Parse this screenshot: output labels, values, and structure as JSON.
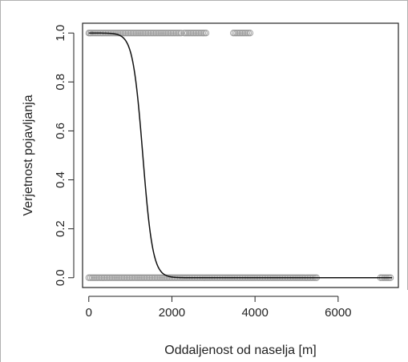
{
  "chart_data": {
    "type": "scatter",
    "title": "",
    "xlabel": "Oddaljenost od naselja [m]",
    "ylabel": "Verjetnost pojavljanja",
    "xlim": [
      -150,
      7450
    ],
    "ylim": [
      -0.04,
      1.04
    ],
    "x_ticks": [
      0,
      2000,
      4000,
      6000
    ],
    "y_ticks": [
      0.0,
      0.2,
      0.4,
      0.6,
      0.8,
      1.0
    ],
    "x_tick_labels": [
      "0",
      "2000",
      "4000",
      "6000"
    ],
    "y_tick_labels": [
      "0.0",
      "0.2",
      "0.4",
      "0.6",
      "0.8",
      "1.0"
    ],
    "grid": false,
    "legend": "none",
    "series": [
      {
        "type": "scatter",
        "points_y1": {
          "x": [
            0,
            30,
            60,
            100,
            140,
            180,
            220,
            260,
            300,
            340,
            380,
            420,
            460,
            500,
            540,
            580,
            620,
            660,
            700,
            740,
            780,
            820,
            860,
            900,
            940,
            980,
            1020,
            1060,
            1100,
            1140,
            1180,
            1220,
            1260,
            1300,
            1340,
            1380,
            1420,
            1460,
            1500,
            1540,
            1580,
            1620,
            1660,
            1700,
            1740,
            1780,
            1820,
            1860,
            1900,
            1940,
            1980,
            2020,
            2060,
            2100,
            2140,
            2180,
            2220,
            2300,
            2340,
            2380,
            2420,
            2460,
            2500,
            2540,
            2580,
            2620,
            2660,
            2700,
            2740,
            2780,
            2820,
            3480,
            3520,
            3560,
            3600,
            3640,
            3680,
            3720,
            3760,
            3800,
            3840,
            3880
          ],
          "y": 1
        },
        "points_y0": {
          "x": [
            0,
            40,
            80,
            120,
            160,
            200,
            240,
            280,
            320,
            360,
            400,
            440,
            480,
            520,
            560,
            600,
            640,
            680,
            720,
            760,
            800,
            840,
            880,
            920,
            960,
            1000,
            1040,
            1080,
            1120,
            1160,
            1200,
            1240,
            1280,
            1320,
            1360,
            1400,
            1440,
            1480,
            1520,
            1560,
            1600,
            1640,
            1680,
            1720,
            1760,
            1800,
            1840,
            1880,
            1920,
            1960,
            2000,
            2040,
            2080,
            2120,
            2160,
            2200,
            2240,
            2280,
            2320,
            2360,
            2400,
            2440,
            2480,
            2520,
            2560,
            2600,
            2640,
            2680,
            2720,
            2760,
            2800,
            2840,
            2880,
            2920,
            2960,
            3000,
            3040,
            3080,
            3120,
            3160,
            3200,
            3240,
            3280,
            3320,
            3360,
            3400,
            3440,
            3480,
            3520,
            3560,
            3600,
            3640,
            3680,
            3720,
            3760,
            3800,
            3840,
            3880,
            3920,
            3960,
            4000,
            4040,
            4080,
            4120,
            4160,
            4200,
            4240,
            4280,
            4320,
            4360,
            4400,
            4440,
            4480,
            4520,
            4560,
            4600,
            4640,
            4680,
            4720,
            4760,
            4800,
            4840,
            4880,
            4920,
            4960,
            5000,
            5040,
            5080,
            5120,
            5160,
            5200,
            5240,
            5280,
            5320,
            5360,
            5400,
            5440,
            5480,
            7020,
            7060,
            7100,
            7140,
            7180,
            7220,
            7260
          ],
          "y": 0
        }
      },
      {
        "type": "line",
        "curve": "logistic",
        "midpoint": 1300,
        "scale": 120,
        "x_range": [
          0,
          7300
        ]
      }
    ]
  }
}
